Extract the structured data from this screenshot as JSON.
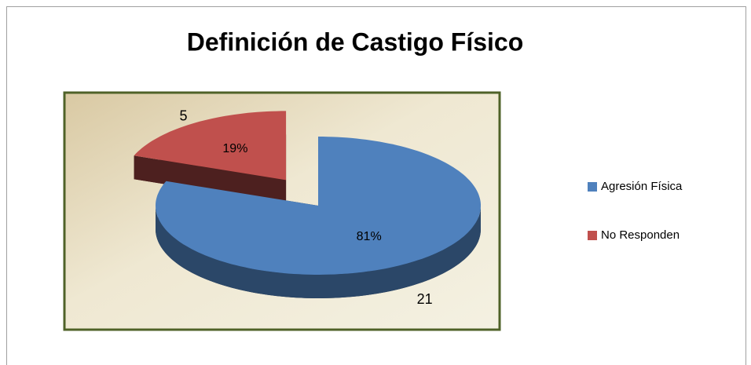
{
  "chart_data": {
    "type": "pie",
    "title": "Definición de Castigo Físico",
    "categories": [
      "Agresión Física",
      "No Responden"
    ],
    "values": [
      21,
      5
    ],
    "percentages": [
      81,
      19
    ],
    "percentage_labels": [
      "81%",
      "19%"
    ],
    "colors": [
      "#4f81bd",
      "#c0504d"
    ],
    "exploded": [
      false,
      true
    ],
    "legend": "right"
  }
}
